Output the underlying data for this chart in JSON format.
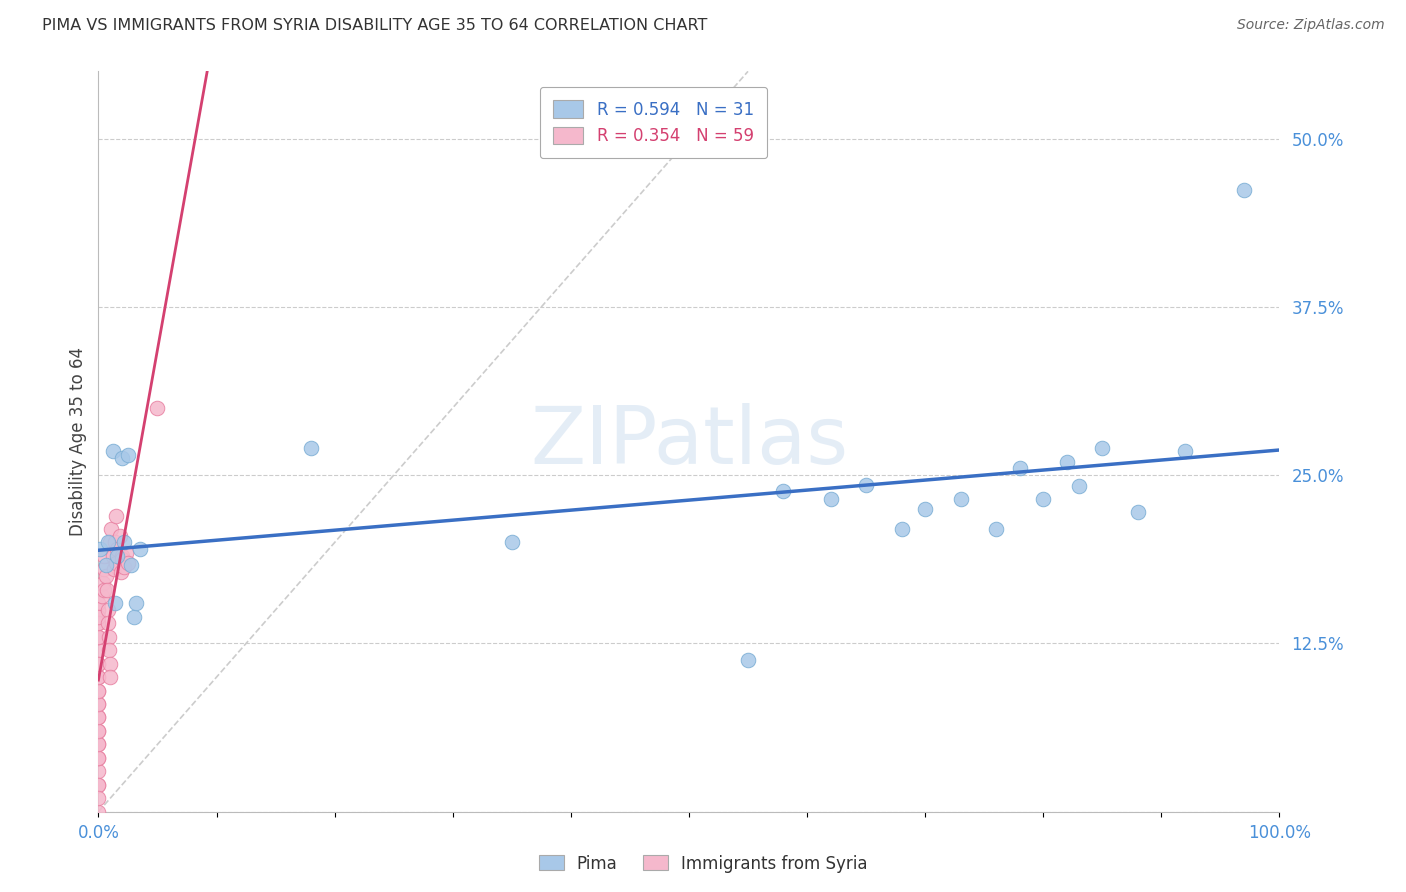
{
  "title": "PIMA VS IMMIGRANTS FROM SYRIA DISABILITY AGE 35 TO 64 CORRELATION CHART",
  "source": "Source: ZipAtlas.com",
  "ylabel": "Disability Age 35 to 64",
  "xlim": [
    0.0,
    1.0
  ],
  "ylim": [
    0.0,
    0.55
  ],
  "xticks": [
    0.0,
    0.1,
    0.2,
    0.3,
    0.4,
    0.5,
    0.6,
    0.7,
    0.8,
    0.9,
    1.0
  ],
  "xticklabels": [
    "0.0%",
    "",
    "",
    "",
    "",
    "",
    "",
    "",
    "",
    "",
    "100.0%"
  ],
  "yticks": [
    0.0,
    0.125,
    0.25,
    0.375,
    0.5
  ],
  "yticklabels": [
    "",
    "12.5%",
    "25.0%",
    "37.5%",
    "50.0%"
  ],
  "pima_color": "#a8c8e8",
  "pima_edge_color": "#7aadd4",
  "syria_color": "#f5b8cc",
  "syria_edge_color": "#e87fa0",
  "pima_line_color": "#3a6fc4",
  "syria_line_color": "#d44070",
  "diagonal_color": "#cccccc",
  "legend_R1": "R = 0.594",
  "legend_N1": "N = 31",
  "legend_R2": "R = 0.354",
  "legend_N2": "N = 59",
  "background_color": "#ffffff",
  "grid_color": "#cccccc",
  "pima_x": [
    0.001,
    0.006,
    0.008,
    0.012,
    0.014,
    0.016,
    0.02,
    0.022,
    0.025,
    0.028,
    0.03,
    0.032,
    0.035,
    0.18,
    0.35,
    0.55,
    0.58,
    0.62,
    0.65,
    0.68,
    0.7,
    0.73,
    0.76,
    0.78,
    0.8,
    0.82,
    0.83,
    0.85,
    0.88,
    0.92,
    0.97
  ],
  "pima_y": [
    0.195,
    0.183,
    0.2,
    0.268,
    0.155,
    0.19,
    0.263,
    0.2,
    0.265,
    0.183,
    0.145,
    0.155,
    0.195,
    0.27,
    0.2,
    0.113,
    0.238,
    0.232,
    0.243,
    0.21,
    0.225,
    0.232,
    0.21,
    0.255,
    0.232,
    0.26,
    0.242,
    0.27,
    0.223,
    0.268,
    0.462
  ],
  "syria_x": [
    0.0,
    0.0,
    0.0,
    0.0,
    0.0,
    0.0,
    0.0,
    0.0,
    0.0,
    0.0,
    0.0,
    0.0,
    0.0,
    0.0,
    0.0,
    0.0,
    0.0,
    0.0,
    0.0,
    0.0,
    0.0,
    0.0,
    0.0,
    0.0,
    0.0,
    0.0,
    0.0,
    0.0,
    0.0,
    0.0,
    0.003,
    0.004,
    0.005,
    0.005,
    0.005,
    0.006,
    0.007,
    0.008,
    0.008,
    0.009,
    0.009,
    0.01,
    0.01,
    0.01,
    0.011,
    0.012,
    0.013,
    0.014,
    0.015,
    0.015,
    0.016,
    0.018,
    0.019,
    0.02,
    0.02,
    0.022,
    0.023,
    0.025,
    0.05
  ],
  "syria_y": [
    0.0,
    0.02,
    0.03,
    0.04,
    0.05,
    0.06,
    0.07,
    0.08,
    0.09,
    0.1,
    0.11,
    0.12,
    0.13,
    0.14,
    0.15,
    0.04,
    0.05,
    0.06,
    0.07,
    0.02,
    0.01,
    0.08,
    0.09,
    0.1,
    0.11,
    0.13,
    0.15,
    0.14,
    0.155,
    0.145,
    0.16,
    0.17,
    0.18,
    0.165,
    0.19,
    0.175,
    0.165,
    0.15,
    0.14,
    0.13,
    0.12,
    0.11,
    0.1,
    0.2,
    0.21,
    0.19,
    0.18,
    0.2,
    0.22,
    0.185,
    0.195,
    0.205,
    0.178,
    0.19,
    0.188,
    0.182,
    0.192,
    0.185,
    0.3
  ]
}
